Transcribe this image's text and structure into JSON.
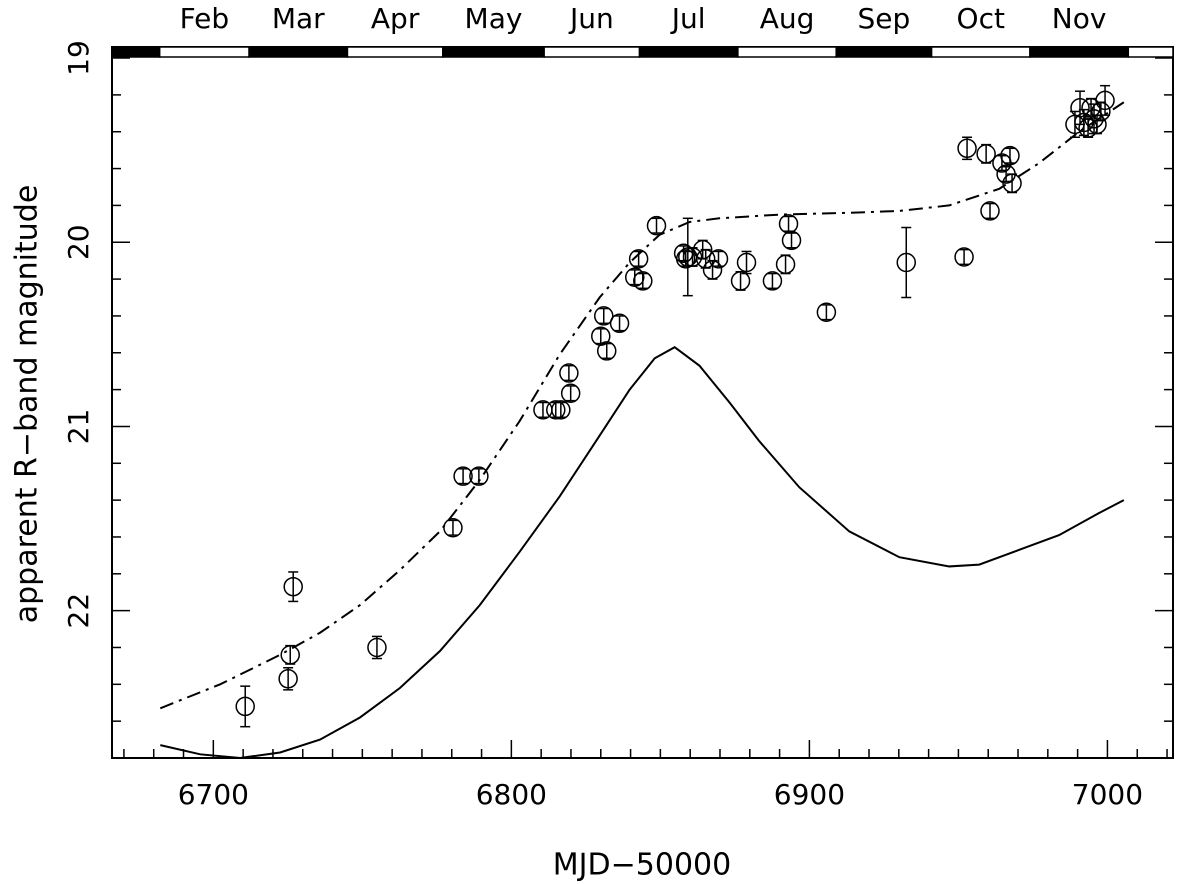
{
  "chart_data": {
    "type": "scatter",
    "xlabel": "MJD−50000",
    "ylabel": "apparent R−band magnitude",
    "xlim": [
      6666,
      7022
    ],
    "xticks": [
      6700,
      6800,
      6900,
      7000
    ],
    "xminor": 10,
    "ylim": [
      18.94,
      22.8
    ],
    "y_inverted": true,
    "yticks": [
      19,
      20,
      21,
      22
    ],
    "yminor": 0.2,
    "months": [
      "Feb",
      "Mar",
      "Apr",
      "May",
      "Jun",
      "Jul",
      "Aug",
      "Sep",
      "Oct",
      "Nov"
    ],
    "month_edges": [
      6682,
      6712,
      6745,
      6777,
      6811,
      6843,
      6876,
      6909,
      6941,
      6974,
      7007
    ],
    "points": {
      "color": "#000000",
      "x": [
        6710.7,
        6726.8,
        6725.8,
        6725.1,
        6754.9,
        6780.4,
        6783.8,
        6789.1,
        6810.6,
        6814.9,
        6816.6,
        6819.3,
        6819.9,
        6830.0,
        6831.0,
        6832.0,
        6836.3,
        6841.4,
        6842.7,
        6844.1,
        6848.7,
        6857.8,
        6858.5,
        6859.2,
        6860.8,
        6864.2,
        6865.2,
        6867.5,
        6869.5,
        6876.9,
        6878.9,
        6887.6,
        6892.0,
        6893.0,
        6894.0,
        6905.7,
        6932.5,
        6951.9,
        6952.9,
        6959.3,
        6960.6,
        6964.6,
        6966.0,
        6967.3,
        6968.0,
        6989.1,
        6990.8,
        6992.1,
        6993.5,
        6994.5,
        6995.5,
        6996.5,
        6997.8,
        6999.2
      ],
      "values": [
        22.52,
        21.87,
        22.24,
        22.37,
        22.2,
        21.55,
        21.27,
        21.27,
        20.91,
        20.91,
        20.91,
        20.71,
        20.82,
        20.51,
        20.4,
        20.59,
        20.44,
        20.19,
        20.09,
        20.21,
        19.91,
        20.06,
        20.09,
        20.08,
        20.08,
        20.04,
        20.09,
        20.15,
        20.09,
        20.21,
        20.11,
        20.21,
        20.12,
        19.9,
        19.99,
        20.38,
        20.11,
        20.08,
        19.49,
        19.52,
        19.83,
        19.57,
        19.63,
        19.53,
        19.68,
        19.36,
        19.27,
        19.35,
        19.38,
        19.27,
        19.33,
        19.36,
        19.29,
        19.23
      ],
      "errors": [
        0.11,
        0.08,
        0.05,
        0.06,
        0.06,
        0.04,
        0.04,
        0.04,
        0.04,
        0.04,
        0.04,
        0.04,
        0.04,
        0.04,
        0.04,
        0.04,
        0.04,
        0.04,
        0.04,
        0.04,
        0.04,
        0.04,
        0.04,
        0.21,
        0.05,
        0.05,
        0.05,
        0.05,
        0.04,
        0.05,
        0.06,
        0.04,
        0.05,
        0.04,
        0.04,
        0.04,
        0.19,
        0.04,
        0.06,
        0.05,
        0.04,
        0.04,
        0.04,
        0.04,
        0.05,
        0.07,
        0.09,
        0.07,
        0.05,
        0.05,
        0.08,
        0.05,
        0.05,
        0.08
      ]
    },
    "curves": [
      {
        "dash": "solid",
        "color": "#000000",
        "x": [
          6682.2,
          6695.6,
          6709.0,
          6722.4,
          6735.8,
          6749.2,
          6762.6,
          6776.0,
          6789.4,
          6802.8,
          6816.2,
          6829.6,
          6839.7,
          6848.1,
          6854.8,
          6863.1,
          6873.2,
          6883.2,
          6896.6,
          6913.4,
          6930.2,
          6946.9,
          6957.0,
          6970.4,
          6983.8,
          6997.2,
          7005.5
        ],
        "values": [
          22.73,
          22.78,
          22.8,
          22.77,
          22.7,
          22.58,
          22.42,
          22.22,
          21.97,
          21.68,
          21.38,
          21.05,
          20.8,
          20.63,
          20.57,
          20.67,
          20.87,
          21.08,
          21.33,
          21.57,
          21.71,
          21.76,
          21.75,
          21.67,
          21.59,
          21.47,
          21.4
        ]
      },
      {
        "dash": "dashdot",
        "color": "#000000",
        "x": [
          6682.2,
          6702.3,
          6722.4,
          6735.8,
          6749.2,
          6762.6,
          6776.0,
          6789.4,
          6802.8,
          6816.2,
          6829.6,
          6839.7,
          6849.7,
          6859.8,
          6869.8,
          6889.9,
          6913.4,
          6930.2,
          6946.9,
          6963.7,
          6977.1,
          6990.5,
          7005.5
        ],
        "values": [
          22.53,
          22.4,
          22.24,
          22.12,
          21.97,
          21.78,
          21.57,
          21.29,
          20.97,
          20.61,
          20.3,
          20.11,
          19.96,
          19.89,
          19.87,
          19.85,
          19.84,
          19.83,
          19.8,
          19.71,
          19.57,
          19.4,
          19.24
        ]
      }
    ]
  }
}
